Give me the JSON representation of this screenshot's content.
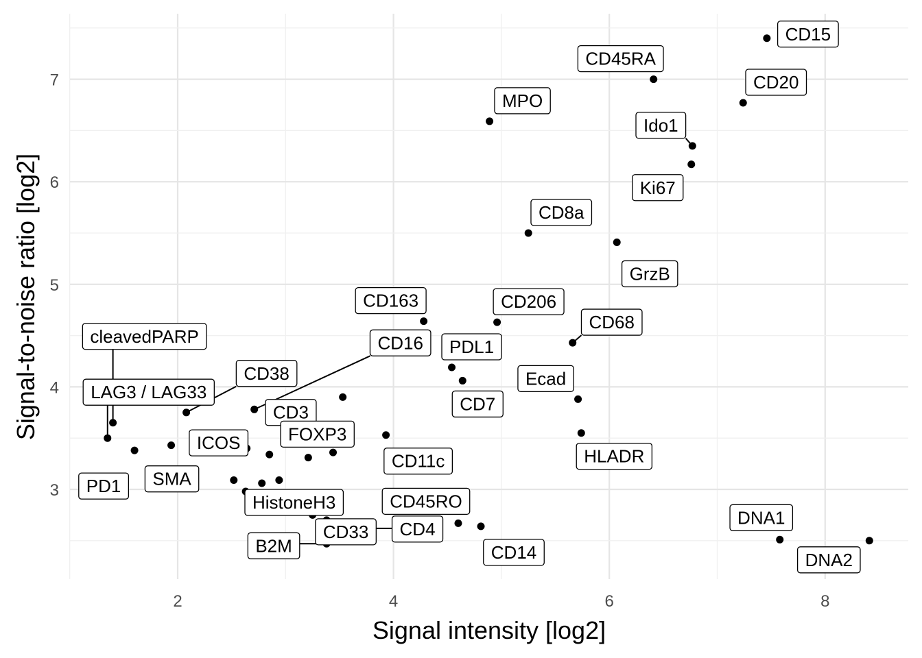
{
  "chart_data": {
    "type": "scatter",
    "xlabel": "Signal intensity [log2]",
    "ylabel": "Signal-to-noise ratio [log2]",
    "xlim": [
      1.0,
      9.0
    ],
    "ylim": [
      2.15,
      7.65
    ],
    "x_ticks": [
      2,
      4,
      6,
      8
    ],
    "x_tick_labels": [
      "2",
      "4",
      "6",
      "8"
    ],
    "y_ticks": [
      3,
      4,
      5,
      6,
      7
    ],
    "y_tick_labels": [
      "3",
      "4",
      "5",
      "6",
      "7"
    ],
    "grid": true,
    "legend": "none",
    "labeled_points": [
      {
        "label": "CD15",
        "x": 7.46,
        "y": 7.4
      },
      {
        "label": "CD45RA",
        "x": 6.41,
        "y": 7.0
      },
      {
        "label": "CD20",
        "x": 7.24,
        "y": 6.77
      },
      {
        "label": "MPO",
        "x": 4.89,
        "y": 6.59
      },
      {
        "label": "Ido1",
        "x": 6.77,
        "y": 6.35
      },
      {
        "label": "Ki67",
        "x": 6.76,
        "y": 6.17
      },
      {
        "label": "CD8a",
        "x": 5.25,
        "y": 5.5
      },
      {
        "label": "GrzB",
        "x": 6.07,
        "y": 5.41
      },
      {
        "label": "CD163",
        "x": 4.28,
        "y": 4.64
      },
      {
        "label": "CD206",
        "x": 4.96,
        "y": 4.63
      },
      {
        "label": "CD68",
        "x": 5.66,
        "y": 4.43
      },
      {
        "label": "PDL1",
        "x": 4.54,
        "y": 4.19
      },
      {
        "label": "CD7",
        "x": 4.64,
        "y": 4.06
      },
      {
        "label": "Ecad",
        "x": 5.71,
        "y": 3.88
      },
      {
        "label": "HLADR",
        "x": 5.74,
        "y": 3.55
      },
      {
        "label": "cleavedPARP",
        "x": 1.4,
        "y": 3.65
      },
      {
        "label": "LAG3 / LAG33",
        "x": 1.35,
        "y": 3.5
      },
      {
        "label": "CD38",
        "x": 2.08,
        "y": 3.75
      },
      {
        "label": "CD16",
        "x": 2.71,
        "y": 3.78
      },
      {
        "label": "CD3",
        "x": 3.36,
        "y": 3.55
      },
      {
        "label": "FOXP3",
        "x": 3.53,
        "y": 3.9
      },
      {
        "label": "CD11c",
        "x": 3.93,
        "y": 3.53
      },
      {
        "label": "ICOS",
        "x": 2.64,
        "y": 3.4
      },
      {
        "label": "PD1",
        "x": 1.6,
        "y": 3.38
      },
      {
        "label": "SMA",
        "x": 1.94,
        "y": 3.43
      },
      {
        "label": "HistoneH3",
        "x": 2.78,
        "y": 3.06
      },
      {
        "label": "B2M",
        "x": 3.38,
        "y": 2.47
      },
      {
        "label": "CD33",
        "x": 3.38,
        "y": 2.7
      },
      {
        "label": "CD4",
        "x": 3.65,
        "y": 2.62
      },
      {
        "label": "CD45RO",
        "x": 4.6,
        "y": 2.67
      },
      {
        "label": "CD14",
        "x": 4.81,
        "y": 2.64
      },
      {
        "label": "DNA1",
        "x": 7.58,
        "y": 2.51
      },
      {
        "label": "DNA2",
        "x": 8.41,
        "y": 2.5
      }
    ],
    "unlabeled_points": [
      {
        "x": 2.52,
        "y": 3.09
      },
      {
        "x": 2.94,
        "y": 3.09
      },
      {
        "x": 2.85,
        "y": 3.34
      },
      {
        "x": 3.21,
        "y": 3.31
      },
      {
        "x": 3.44,
        "y": 3.36
      },
      {
        "x": 3.25,
        "y": 2.75
      },
      {
        "x": 2.63,
        "y": 2.98
      }
    ]
  }
}
